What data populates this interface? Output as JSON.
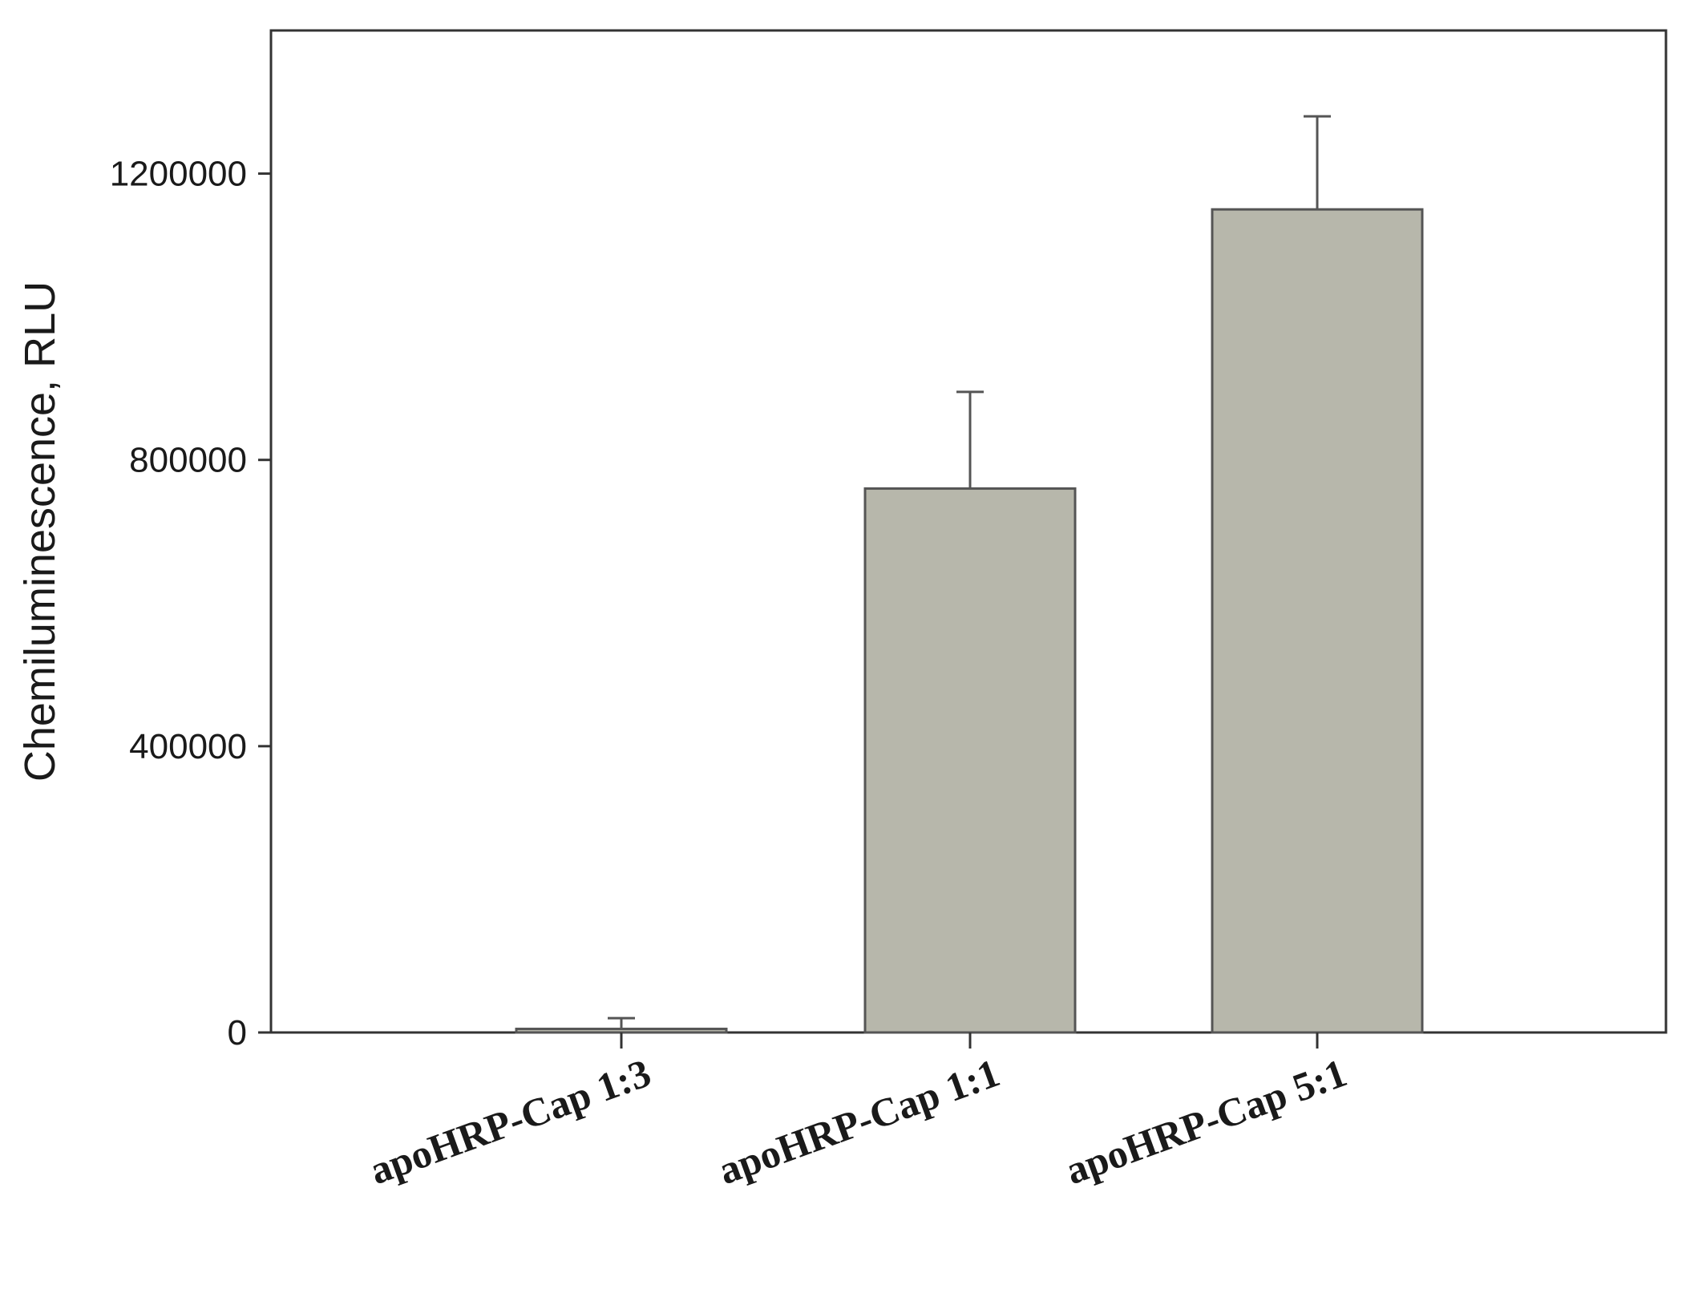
{
  "chart_data": {
    "type": "bar",
    "title": "",
    "xlabel": "",
    "ylabel": "Chemiluminescence, RLU",
    "ylim": [
      0,
      1400000
    ],
    "yticks": [
      0,
      400000,
      800000,
      1200000
    ],
    "ytick_labels": [
      "0",
      "400000",
      "800000",
      "1200000"
    ],
    "grid": false,
    "legend": "none",
    "categories": [
      "apoHRP-Cap 1:3",
      "apoHRP-Cap 1:1",
      "apoHRP-Cap 5:1"
    ],
    "values": [
      5000,
      760000,
      1150000
    ],
    "errors": [
      15000,
      135000,
      130000
    ],
    "bar_color": "#b7b7ab",
    "bar_edge_color": "#555555",
    "axis_color": "#333333"
  }
}
